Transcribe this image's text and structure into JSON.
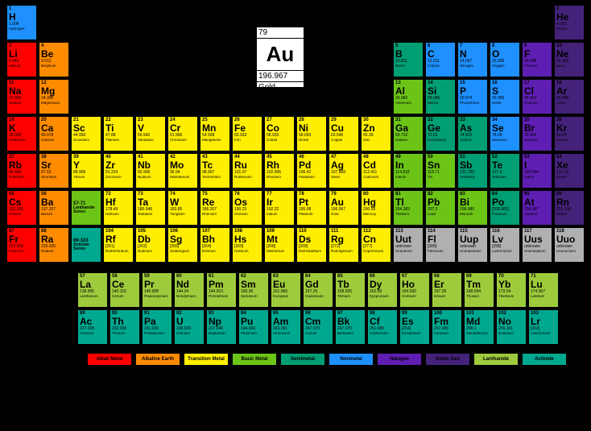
{
  "featured": {
    "num": "79",
    "sym": "Au",
    "mass": "196.967",
    "name": "Gold"
  },
  "colors": {
    "am": "#ff0000",
    "ae": "#ff8c00",
    "tm": "#ffee00",
    "bm": "#6cc417",
    "sm": "#009e73",
    "nm": "#1e90ff",
    "hl": "#5f1eb2",
    "ng": "#44227a",
    "ln": "#9ecb3c",
    "ac": "#00a890",
    "unk": "#b0b0b0"
  },
  "legend": [
    {
      "label": "Alkali Metal",
      "cls": "am"
    },
    {
      "label": "Alkaline Earth",
      "cls": "ae"
    },
    {
      "label": "Transition Metal",
      "cls": "tm"
    },
    {
      "label": "Basic Metal",
      "cls": "bm"
    },
    {
      "label": "Semimetal",
      "cls": "sm"
    },
    {
      "label": "Nonmetal",
      "cls": "nm-c"
    },
    {
      "label": "Halogen",
      "cls": "hl"
    },
    {
      "label": "Noble Gas",
      "cls": "ng"
    },
    {
      "label": "Lanthanide",
      "cls": "ln"
    },
    {
      "label": "Actinide",
      "cls": "ac"
    }
  ],
  "lanth_label": "Lanthanide Series",
  "act_label": "Actinide Series",
  "lanth_range": "57-71",
  "act_range": "89-103",
  "elements": [
    {
      "n": 1,
      "s": "H",
      "m": "1.008",
      "nm": "Hydrogen",
      "c": "nm-c",
      "r": 1,
      "col": 1
    },
    {
      "n": 2,
      "s": "He",
      "m": "4.003",
      "nm": "Helium",
      "c": "ng",
      "r": 1,
      "col": 18
    },
    {
      "n": 3,
      "s": "Li",
      "m": "6.941",
      "nm": "Lithium",
      "c": "am",
      "r": 2,
      "col": 1
    },
    {
      "n": 4,
      "s": "Be",
      "m": "9.012",
      "nm": "Beryllium",
      "c": "ae",
      "r": 2,
      "col": 2
    },
    {
      "n": 5,
      "s": "B",
      "m": "10.811",
      "nm": "Boron",
      "c": "sm",
      "r": 2,
      "col": 13
    },
    {
      "n": 6,
      "s": "C",
      "m": "12.011",
      "nm": "Carbon",
      "c": "nm-c",
      "r": 2,
      "col": 14
    },
    {
      "n": 7,
      "s": "N",
      "m": "14.007",
      "nm": "Nitrogen",
      "c": "nm-c",
      "r": 2,
      "col": 15
    },
    {
      "n": 8,
      "s": "O",
      "m": "15.999",
      "nm": "Oxygen",
      "c": "nm-c",
      "r": 2,
      "col": 16
    },
    {
      "n": 9,
      "s": "F",
      "m": "18.998",
      "nm": "Fluorine",
      "c": "hl",
      "r": 2,
      "col": 17
    },
    {
      "n": 10,
      "s": "Ne",
      "m": "20.180",
      "nm": "Neon",
      "c": "ng",
      "r": 2,
      "col": 18
    },
    {
      "n": 11,
      "s": "Na",
      "m": "22.990",
      "nm": "Sodium",
      "c": "am",
      "r": 3,
      "col": 1
    },
    {
      "n": 12,
      "s": "Mg",
      "m": "24.305",
      "nm": "Magnesium",
      "c": "ae",
      "r": 3,
      "col": 2
    },
    {
      "n": 13,
      "s": "Al",
      "m": "26.982",
      "nm": "Aluminum",
      "c": "bm",
      "r": 3,
      "col": 13
    },
    {
      "n": 14,
      "s": "Si",
      "m": "28.086",
      "nm": "Silicon",
      "c": "sm",
      "r": 3,
      "col": 14
    },
    {
      "n": 15,
      "s": "P",
      "m": "30.974",
      "nm": "Phosphorus",
      "c": "nm-c",
      "r": 3,
      "col": 15
    },
    {
      "n": 16,
      "s": "S",
      "m": "32.065",
      "nm": "Sulfur",
      "c": "nm-c",
      "r": 3,
      "col": 16
    },
    {
      "n": 17,
      "s": "Cl",
      "m": "35.453",
      "nm": "Chlorine",
      "c": "hl",
      "r": 3,
      "col": 17
    },
    {
      "n": 18,
      "s": "Ar",
      "m": "39.948",
      "nm": "Argon",
      "c": "ng",
      "r": 3,
      "col": 18
    },
    {
      "n": 19,
      "s": "K",
      "m": "39.098",
      "nm": "Potassium",
      "c": "am",
      "r": 4,
      "col": 1
    },
    {
      "n": 20,
      "s": "Ca",
      "m": "40.078",
      "nm": "Calcium",
      "c": "ae",
      "r": 4,
      "col": 2
    },
    {
      "n": 21,
      "s": "Sc",
      "m": "44.956",
      "nm": "Scandium",
      "c": "tm",
      "r": 4,
      "col": 3
    },
    {
      "n": 22,
      "s": "Ti",
      "m": "47.88",
      "nm": "Titanium",
      "c": "tm",
      "r": 4,
      "col": 4
    },
    {
      "n": 23,
      "s": "V",
      "m": "50.942",
      "nm": "Vanadium",
      "c": "tm",
      "r": 4,
      "col": 5
    },
    {
      "n": 24,
      "s": "Cr",
      "m": "51.996",
      "nm": "Chromium",
      "c": "tm",
      "r": 4,
      "col": 6
    },
    {
      "n": 25,
      "s": "Mn",
      "m": "54.938",
      "nm": "Manganese",
      "c": "tm",
      "r": 4,
      "col": 7
    },
    {
      "n": 26,
      "s": "Fe",
      "m": "55.933",
      "nm": "Iron",
      "c": "tm",
      "r": 4,
      "col": 8
    },
    {
      "n": 27,
      "s": "Co",
      "m": "58.933",
      "nm": "Cobalt",
      "c": "tm",
      "r": 4,
      "col": 9
    },
    {
      "n": 28,
      "s": "Ni",
      "m": "58.693",
      "nm": "Nickel",
      "c": "tm",
      "r": 4,
      "col": 10
    },
    {
      "n": 29,
      "s": "Cu",
      "m": "63.546",
      "nm": "Copper",
      "c": "tm",
      "r": 4,
      "col": 11
    },
    {
      "n": 30,
      "s": "Zn",
      "m": "65.39",
      "nm": "Zinc",
      "c": "tm",
      "r": 4,
      "col": 12
    },
    {
      "n": 31,
      "s": "Ga",
      "m": "69.732",
      "nm": "Gallium",
      "c": "bm",
      "r": 4,
      "col": 13
    },
    {
      "n": 32,
      "s": "Ge",
      "m": "72.61",
      "nm": "Germanium",
      "c": "sm",
      "r": 4,
      "col": 14
    },
    {
      "n": 33,
      "s": "As",
      "m": "74.922",
      "nm": "Arsenic",
      "c": "sm",
      "r": 4,
      "col": 15
    },
    {
      "n": 34,
      "s": "Se",
      "m": "78.09",
      "nm": "Selenium",
      "c": "nm-c",
      "r": 4,
      "col": 16
    },
    {
      "n": 35,
      "s": "Br",
      "m": "79.904",
      "nm": "Bromine",
      "c": "hl",
      "r": 4,
      "col": 17
    },
    {
      "n": 36,
      "s": "Kr",
      "m": "84.80",
      "nm": "Krypton",
      "c": "ng",
      "r": 4,
      "col": 18
    },
    {
      "n": 37,
      "s": "Rb",
      "m": "85.468",
      "nm": "Rubidium",
      "c": "am",
      "r": 5,
      "col": 1
    },
    {
      "n": 38,
      "s": "Sr",
      "m": "87.62",
      "nm": "Strontium",
      "c": "ae",
      "r": 5,
      "col": 2
    },
    {
      "n": 39,
      "s": "Y",
      "m": "88.906",
      "nm": "Yttrium",
      "c": "tm",
      "r": 5,
      "col": 3
    },
    {
      "n": 40,
      "s": "Zr",
      "m": "91.224",
      "nm": "Zirconium",
      "c": "tm",
      "r": 5,
      "col": 4
    },
    {
      "n": 41,
      "s": "Nb",
      "m": "92.906",
      "nm": "Niobium",
      "c": "tm",
      "r": 5,
      "col": 5
    },
    {
      "n": 42,
      "s": "Mo",
      "m": "95.94",
      "nm": "Molibdenum",
      "c": "tm",
      "r": 5,
      "col": 6
    },
    {
      "n": 43,
      "s": "Tc",
      "m": "98.907",
      "nm": "Technetium",
      "c": "tm",
      "r": 5,
      "col": 7
    },
    {
      "n": 44,
      "s": "Ru",
      "m": "101.07",
      "nm": "Ruthenium",
      "c": "tm",
      "r": 5,
      "col": 8
    },
    {
      "n": 45,
      "s": "Rh",
      "m": "102.906",
      "nm": "Rhodium",
      "c": "tm",
      "r": 5,
      "col": 9
    },
    {
      "n": 46,
      "s": "Pd",
      "m": "106.42",
      "nm": "Palladium",
      "c": "tm",
      "r": 5,
      "col": 10
    },
    {
      "n": 47,
      "s": "Ag",
      "m": "107.868",
      "nm": "Silver",
      "c": "tm",
      "r": 5,
      "col": 11
    },
    {
      "n": 48,
      "s": "Cd",
      "m": "112.411",
      "nm": "Cadmium",
      "c": "tm",
      "r": 5,
      "col": 12
    },
    {
      "n": 49,
      "s": "In",
      "m": "114.818",
      "nm": "Indium",
      "c": "bm",
      "r": 5,
      "col": 13
    },
    {
      "n": 50,
      "s": "Sn",
      "m": "118.71",
      "nm": "Tin",
      "c": "bm",
      "r": 5,
      "col": 14
    },
    {
      "n": 51,
      "s": "Sb",
      "m": "121.760",
      "nm": "Antimony",
      "c": "sm",
      "r": 5,
      "col": 15
    },
    {
      "n": 52,
      "s": "Te",
      "m": "127.6",
      "nm": "Tellurium",
      "c": "sm",
      "r": 5,
      "col": 16
    },
    {
      "n": 53,
      "s": "I",
      "m": "126.904",
      "nm": "Iodine",
      "c": "hl",
      "r": 5,
      "col": 17
    },
    {
      "n": 54,
      "s": "Xe",
      "m": "131.29",
      "nm": "Xenon",
      "c": "ng",
      "r": 5,
      "col": 18
    },
    {
      "n": 55,
      "s": "Cs",
      "m": "132.905",
      "nm": "Cesium",
      "c": "am",
      "r": 6,
      "col": 1
    },
    {
      "n": 56,
      "s": "Ba",
      "m": "137.327",
      "nm": "Barium",
      "c": "ae",
      "r": 6,
      "col": 2
    },
    {
      "n": 72,
      "s": "Hf",
      "m": "178.49",
      "nm": "Hafnium",
      "c": "tm",
      "r": 6,
      "col": 4
    },
    {
      "n": 73,
      "s": "Ta",
      "m": "180.948",
      "nm": "Tantalum",
      "c": "tm",
      "r": 6,
      "col": 5
    },
    {
      "n": 74,
      "s": "W",
      "m": "183.85",
      "nm": "Tungsten",
      "c": "tm",
      "r": 6,
      "col": 6
    },
    {
      "n": 75,
      "s": "Re",
      "m": "186.207",
      "nm": "Rhenium",
      "c": "tm",
      "r": 6,
      "col": 7
    },
    {
      "n": 76,
      "s": "Os",
      "m": "190.23",
      "nm": "Osmium",
      "c": "tm",
      "r": 6,
      "col": 8
    },
    {
      "n": 77,
      "s": "Ir",
      "m": "192.22",
      "nm": "Iridium",
      "c": "tm",
      "r": 6,
      "col": 9
    },
    {
      "n": 78,
      "s": "Pt",
      "m": "195.08",
      "nm": "Platinum",
      "c": "tm",
      "r": 6,
      "col": 10
    },
    {
      "n": 79,
      "s": "Au",
      "m": "196.967",
      "nm": "Gold",
      "c": "tm",
      "r": 6,
      "col": 11
    },
    {
      "n": 80,
      "s": "Hg",
      "m": "200.59",
      "nm": "Mercury",
      "c": "tm",
      "r": 6,
      "col": 12
    },
    {
      "n": 81,
      "s": "Tl",
      "m": "204.383",
      "nm": "Thallium",
      "c": "bm",
      "r": 6,
      "col": 13
    },
    {
      "n": 82,
      "s": "Pb",
      "m": "207.2",
      "nm": "Lead",
      "c": "bm",
      "r": 6,
      "col": 14
    },
    {
      "n": 83,
      "s": "Bi",
      "m": "208.980",
      "nm": "Bismuth",
      "c": "bm",
      "r": 6,
      "col": 15
    },
    {
      "n": 84,
      "s": "Po",
      "m": "[208.982]",
      "nm": "Polonium",
      "c": "sm",
      "r": 6,
      "col": 16
    },
    {
      "n": 85,
      "s": "At",
      "m": "209.987",
      "nm": "Astatine",
      "c": "hl",
      "r": 6,
      "col": 17
    },
    {
      "n": 86,
      "s": "Rn",
      "m": "222.018",
      "nm": "Radon",
      "c": "ng",
      "r": 6,
      "col": 18
    },
    {
      "n": 87,
      "s": "Fr",
      "m": "223.020",
      "nm": "Francium",
      "c": "am",
      "r": 7,
      "col": 1
    },
    {
      "n": 88,
      "s": "Ra",
      "m": "226.025",
      "nm": "Radium",
      "c": "ae",
      "r": 7,
      "col": 2
    },
    {
      "n": 104,
      "s": "Rf",
      "m": "[261]",
      "nm": "Rutherfordium",
      "c": "tm",
      "r": 7,
      "col": 4
    },
    {
      "n": 105,
      "s": "Db",
      "m": "[262]",
      "nm": "Dubnium",
      "c": "tm",
      "r": 7,
      "col": 5
    },
    {
      "n": 106,
      "s": "Sg",
      "m": "[266]",
      "nm": "Seaborgium",
      "c": "tm",
      "r": 7,
      "col": 6
    },
    {
      "n": 107,
      "s": "Bh",
      "m": "[264]",
      "nm": "Bohrium",
      "c": "tm",
      "r": 7,
      "col": 7
    },
    {
      "n": 108,
      "s": "Hs",
      "m": "[269]",
      "nm": "Hassium",
      "c": "tm",
      "r": 7,
      "col": 8
    },
    {
      "n": 109,
      "s": "Mt",
      "m": "[268]",
      "nm": "Meitnerium",
      "c": "tm",
      "r": 7,
      "col": 9
    },
    {
      "n": 110,
      "s": "Ds",
      "m": "[269]",
      "nm": "Darmstadtium",
      "c": "tm",
      "r": 7,
      "col": 10
    },
    {
      "n": 111,
      "s": "Rg",
      "m": "[272]",
      "nm": "Roentgenium",
      "c": "tm",
      "r": 7,
      "col": 11
    },
    {
      "n": 112,
      "s": "Cn",
      "m": "[277]",
      "nm": "Copernicium",
      "c": "tm",
      "r": 7,
      "col": 12
    },
    {
      "n": 113,
      "s": "Uut",
      "m": "unknown",
      "nm": "Ununtrium",
      "c": "unk",
      "r": 7,
      "col": 13
    },
    {
      "n": 114,
      "s": "Fl",
      "m": "[289]",
      "nm": "Flerovium",
      "c": "unk",
      "r": 7,
      "col": 14
    },
    {
      "n": 115,
      "s": "Uup",
      "m": "unknown",
      "nm": "Ununpentium",
      "c": "unk",
      "r": 7,
      "col": 15
    },
    {
      "n": 116,
      "s": "Lv",
      "m": "[298]",
      "nm": "Livermorium",
      "c": "unk",
      "r": 7,
      "col": 16
    },
    {
      "n": 117,
      "s": "Uus",
      "m": "unknown",
      "nm": "Ununseptium",
      "c": "unk",
      "r": 7,
      "col": 17
    },
    {
      "n": 118,
      "s": "Uuo",
      "m": "unknown",
      "nm": "Ununoctium",
      "c": "unk",
      "r": 7,
      "col": 18
    }
  ],
  "lanth": [
    {
      "n": 57,
      "s": "La",
      "m": "138.906",
      "nm": "Lanthanum",
      "c": "ln"
    },
    {
      "n": 58,
      "s": "Ce",
      "m": "140.115",
      "nm": "Cerium",
      "c": "ln"
    },
    {
      "n": 59,
      "s": "Pr",
      "m": "140.908",
      "nm": "Praseodymium",
      "c": "ln"
    },
    {
      "n": 60,
      "s": "Nd",
      "m": "144.24",
      "nm": "Neodymium",
      "c": "ln"
    },
    {
      "n": 61,
      "s": "Pm",
      "m": "144.913",
      "nm": "Promethium",
      "c": "ln"
    },
    {
      "n": 62,
      "s": "Sm",
      "m": "150.36",
      "nm": "Samarium",
      "c": "ln"
    },
    {
      "n": 63,
      "s": "Eu",
      "m": "151.966",
      "nm": "Europium",
      "c": "ln"
    },
    {
      "n": 64,
      "s": "Gd",
      "m": "157.25",
      "nm": "Gadolinium",
      "c": "ln"
    },
    {
      "n": 65,
      "s": "Tb",
      "m": "158.925",
      "nm": "Terbium",
      "c": "ln"
    },
    {
      "n": 66,
      "s": "Dy",
      "m": "162.50",
      "nm": "Dysprosium",
      "c": "ln"
    },
    {
      "n": 67,
      "s": "Ho",
      "m": "164.930",
      "nm": "Holmium",
      "c": "ln"
    },
    {
      "n": 68,
      "s": "Er",
      "m": "167.26",
      "nm": "Erbium",
      "c": "ln"
    },
    {
      "n": 69,
      "s": "Tm",
      "m": "168.934",
      "nm": "Thulium",
      "c": "ln"
    },
    {
      "n": 70,
      "s": "Yb",
      "m": "173.04",
      "nm": "Ytterbium",
      "c": "ln"
    },
    {
      "n": 71,
      "s": "Lu",
      "m": "174.967",
      "nm": "Lutetium",
      "c": "ln"
    }
  ],
  "act": [
    {
      "n": 89,
      "s": "Ac",
      "m": "227.028",
      "nm": "Actinium",
      "c": "ac"
    },
    {
      "n": 90,
      "s": "Th",
      "m": "232.038",
      "nm": "Thorium",
      "c": "ac"
    },
    {
      "n": 91,
      "s": "Pa",
      "m": "231.036",
      "nm": "Protactinium",
      "c": "ac"
    },
    {
      "n": 92,
      "s": "U",
      "m": "238.029",
      "nm": "Uranium",
      "c": "ac"
    },
    {
      "n": 93,
      "s": "Np",
      "m": "237.048",
      "nm": "Neptunium",
      "c": "ac"
    },
    {
      "n": 94,
      "s": "Pu",
      "m": "244.064",
      "nm": "Plutonium",
      "c": "ac"
    },
    {
      "n": 95,
      "s": "Am",
      "m": "243.061",
      "nm": "Americium",
      "c": "ac"
    },
    {
      "n": 96,
      "s": "Cm",
      "m": "247.070",
      "nm": "Curium",
      "c": "ac"
    },
    {
      "n": 97,
      "s": "Bk",
      "m": "247.070",
      "nm": "Berkelium",
      "c": "ac"
    },
    {
      "n": 98,
      "s": "Cf",
      "m": "251.080",
      "nm": "Californium",
      "c": "ac"
    },
    {
      "n": 99,
      "s": "Es",
      "m": "[254]",
      "nm": "Einsteinium",
      "c": "ac"
    },
    {
      "n": 100,
      "s": "Fm",
      "m": "257.095",
      "nm": "Fermium",
      "c": "ac"
    },
    {
      "n": 101,
      "s": "Md",
      "m": "258.1",
      "nm": "Mendelevium",
      "c": "ac"
    },
    {
      "n": 102,
      "s": "No",
      "m": "259.101",
      "nm": "Nobelium",
      "c": "ac"
    },
    {
      "n": 103,
      "s": "Lr",
      "m": "[262]",
      "nm": "Lawrencium",
      "c": "ac"
    }
  ]
}
